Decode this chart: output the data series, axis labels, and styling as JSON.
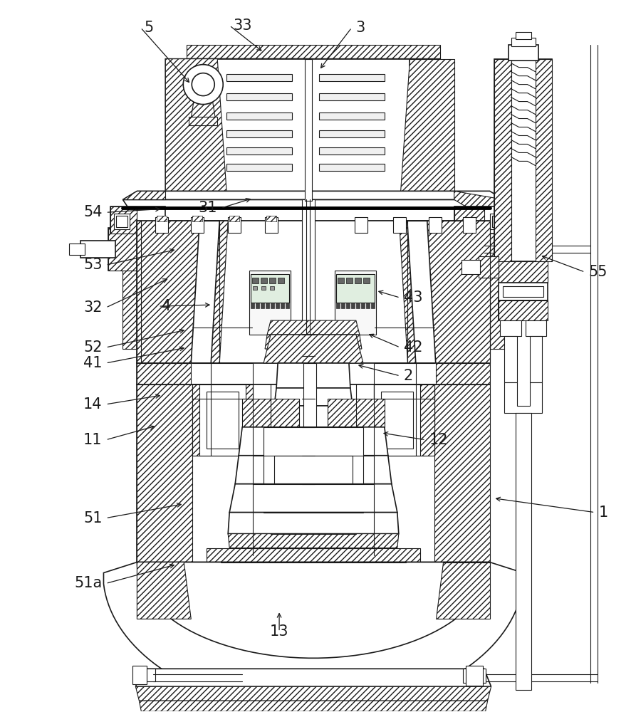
{
  "bg_color": "#ffffff",
  "line_color": "#1a1a1a",
  "figsize": [
    8.86,
    10.0
  ],
  "dpi": 100,
  "labels": {
    "1": [
      836,
      720,
      693,
      700,
      "left"
    ],
    "2": [
      562,
      528,
      500,
      512,
      "left"
    ],
    "3": [
      494,
      38,
      448,
      98,
      "left"
    ],
    "4": [
      222,
      430,
      298,
      428,
      "left"
    ],
    "5": [
      197,
      38,
      268,
      118,
      "left"
    ],
    "11": [
      148,
      618,
      220,
      598,
      "right"
    ],
    "12": [
      598,
      618,
      535,
      608,
      "left"
    ],
    "13": [
      392,
      888,
      392,
      858,
      "center"
    ],
    "14": [
      148,
      568,
      228,
      555,
      "right"
    ],
    "31": [
      310,
      292,
      355,
      278,
      "right"
    ],
    "32": [
      148,
      432,
      238,
      390,
      "right"
    ],
    "33": [
      322,
      35,
      370,
      73,
      "left"
    ],
    "41": [
      148,
      510,
      262,
      488,
      "right"
    ],
    "42": [
      562,
      488,
      515,
      468,
      "left"
    ],
    "43": [
      562,
      418,
      528,
      408,
      "left"
    ],
    "51": [
      148,
      728,
      258,
      708,
      "right"
    ],
    "51a": [
      148,
      820,
      248,
      793,
      "right"
    ],
    "52": [
      148,
      488,
      262,
      463,
      "right"
    ],
    "53": [
      148,
      372,
      248,
      350,
      "right"
    ],
    "54": [
      148,
      298,
      228,
      293,
      "right"
    ],
    "55": [
      822,
      382,
      758,
      358,
      "left"
    ]
  }
}
